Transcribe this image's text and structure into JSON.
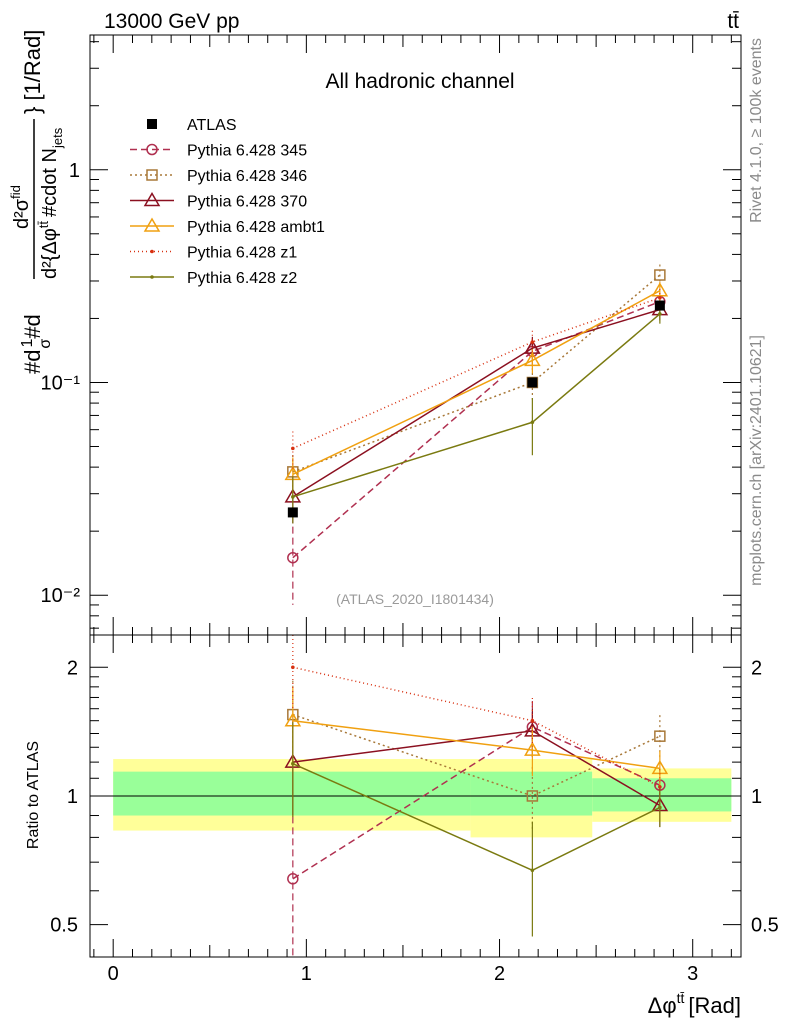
{
  "header": {
    "left": "13000 GeV pp",
    "right": "tt̄"
  },
  "side": {
    "top": "Rivet 4.1.0, ≥ 100k events",
    "bottom": "mcplots.cern.ch [arXiv:2401.10621]"
  },
  "chart_data": {
    "type": "line",
    "title": "All hadronic channel",
    "analysis": "(ATLAS_2020_I1801434)",
    "ylabel": "#d¹/σ #d d²σᴵᵈ / d²{Δφᵗᵗ̄ #cdot N_jets} [1/Rad]",
    "ylabel_parts": {
      "a": "#d",
      "b": "1",
      "c": "σ",
      "d": "#d",
      "e": "d²σ",
      "f": "fid",
      "g": "d²{Δφ",
      "h": "tt̄",
      "i": "#cdot N",
      "j": "jets",
      "k": "} [1/Rad]"
    },
    "xlabel": "Δφ",
    "xlabel_sup": "tt̄",
    "xlabel_unit": "[Rad]",
    "ratio_ylabel": "Ratio to ATLAS",
    "xlim": [
      -0.12,
      3.25
    ],
    "ylim": [
      0.0065,
      4.3
    ],
    "yscale": "log",
    "ratio_ylim": [
      0.42,
      2.38
    ],
    "x_ticks": [
      "0",
      "1",
      "2",
      "3"
    ],
    "y_tick_labels": [
      "10⁻²",
      "10⁻¹",
      "1"
    ],
    "ratio_tick_labels": [
      "0.5",
      "1",
      "2"
    ],
    "bins": [
      [
        0.0,
        1.85
      ],
      [
        1.85,
        2.48
      ],
      [
        2.48,
        3.2
      ]
    ],
    "x": [
      0.93,
      2.17,
      2.83
    ],
    "data": {
      "name": "ATLAS",
      "values": [
        0.0245,
        0.1,
        0.23
      ],
      "band_stat_rel": [
        [
          0.9,
          1.14
        ],
        [
          0.9,
          1.14
        ],
        [
          0.92,
          1.1
        ]
      ],
      "band_tot_rel": [
        [
          0.83,
          1.22
        ],
        [
          0.8,
          1.22
        ],
        [
          0.87,
          1.16
        ]
      ]
    },
    "series": [
      {
        "name": "Pythia 6.428 345",
        "color": "#b03050",
        "dash": "7,4",
        "marker": "circle",
        "values": [
          0.015,
          0.14,
          0.24
        ],
        "err_rel": [
          0.4,
          0.15,
          0.1
        ],
        "ratio": [
          0.64,
          1.45,
          1.06
        ]
      },
      {
        "name": "Pythia 6.428 346",
        "color": "#a87838",
        "dash": "2,3",
        "marker": "square",
        "values": [
          0.038,
          0.1,
          0.32
        ],
        "err_rel": [
          0.2,
          0.17,
          0.12
        ],
        "ratio": [
          1.55,
          1.0,
          1.38
        ]
      },
      {
        "name": "Pythia 6.428 370",
        "color": "#8b1020",
        "dash": "",
        "marker": "triangle",
        "values": [
          0.029,
          0.145,
          0.22
        ],
        "err_rel": [
          0.25,
          0.13,
          0.11
        ],
        "ratio": [
          1.2,
          1.42,
          0.95
        ]
      },
      {
        "name": "Pythia 6.428 ambt1",
        "color": "#f0a010",
        "dash": "",
        "marker": "triangle",
        "values": [
          0.037,
          0.127,
          0.27
        ],
        "err_rel": [
          0.2,
          0.13,
          0.1
        ],
        "ratio": [
          1.5,
          1.28,
          1.16
        ]
      },
      {
        "name": "Pythia 6.428 z1",
        "color": "#d83010",
        "dash": "1,3",
        "marker": "dot",
        "values": [
          0.049,
          0.155,
          0.25
        ],
        "err_rel": [
          0.2,
          0.13,
          0.1
        ],
        "ratio": [
          2.0,
          1.5,
          1.05
        ]
      },
      {
        "name": "Pythia 6.428 z2",
        "color": "#7a7a10",
        "dash": "",
        "marker": "dot",
        "values": [
          0.029,
          0.065,
          0.21
        ],
        "err_rel": [
          0.25,
          0.3,
          0.1
        ],
        "ratio": [
          1.19,
          0.67,
          0.94
        ]
      }
    ]
  }
}
